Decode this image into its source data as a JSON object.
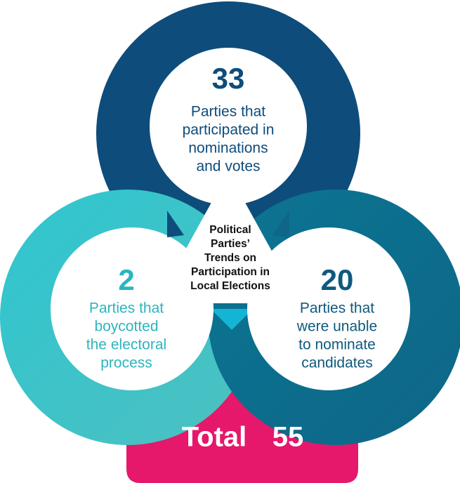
{
  "center_title": [
    "Political",
    "Parties’",
    "Trends on",
    "Participation in",
    "Local Elections"
  ],
  "items": [
    {
      "number": "33",
      "lines": [
        "Parties that",
        "participated in",
        "nominations",
        "and votes"
      ]
    },
    {
      "number": "2",
      "lines": [
        "Parties that",
        "boycotted",
        "the electoral",
        "process"
      ]
    },
    {
      "number": "20",
      "lines": [
        "Parties that",
        "were unable",
        "to nominate",
        "candidates"
      ]
    }
  ],
  "total": {
    "label": "Total",
    "value": "55"
  }
}
